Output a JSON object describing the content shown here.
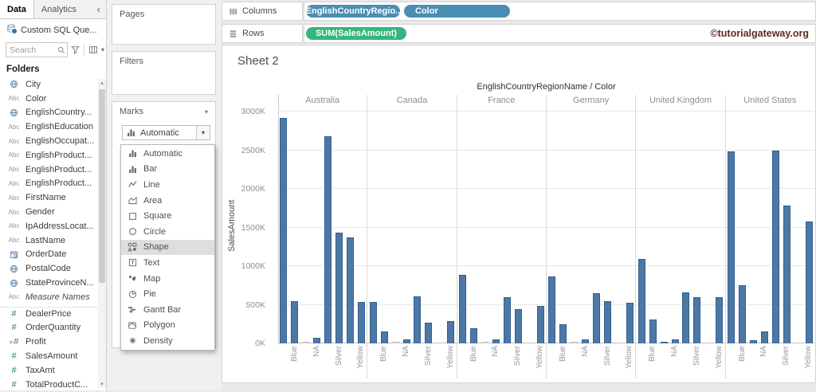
{
  "data_pane": {
    "tabs": {
      "data": "Data",
      "analytics": "Analytics"
    },
    "connection": "Custom SQL Que...",
    "search_placeholder": "Search",
    "folders_label": "Folders",
    "fields": [
      {
        "label": "City",
        "icon": "globe-icon"
      },
      {
        "label": "Color",
        "icon": "abc-icon"
      },
      {
        "label": "EnglishCountry...",
        "icon": "globe-icon"
      },
      {
        "label": "EnglishEducation",
        "icon": "abc-icon"
      },
      {
        "label": "EnglishOccupat...",
        "icon": "abc-icon"
      },
      {
        "label": "EnglishProduct...",
        "icon": "abc-icon"
      },
      {
        "label": "EnglishProduct...",
        "icon": "abc-icon"
      },
      {
        "label": "EnglishProduct...",
        "icon": "abc-icon"
      },
      {
        "label": "FirstName",
        "icon": "abc-icon"
      },
      {
        "label": "Gender",
        "icon": "abc-icon"
      },
      {
        "label": "IpAddressLocat...",
        "icon": "abc-icon"
      },
      {
        "label": "LastName",
        "icon": "abc-icon"
      },
      {
        "label": "OrderDate",
        "icon": "calendar-icon"
      },
      {
        "label": "PostalCode",
        "icon": "globe-icon"
      },
      {
        "label": "StateProvinceN...",
        "icon": "globe-icon"
      },
      {
        "label": "Measure Names",
        "icon": "abc-icon",
        "italic": true
      },
      {
        "label": "DealerPrice",
        "icon": "hash-icon",
        "measure": true,
        "section_start": true
      },
      {
        "label": "OrderQuantity",
        "icon": "hash-icon",
        "measure": true
      },
      {
        "label": "Profit",
        "icon": "hash-equals-icon",
        "measure": true
      },
      {
        "label": "SalesAmount",
        "icon": "hash-icon",
        "measure": true
      },
      {
        "label": "TaxAmt",
        "icon": "hash-icon",
        "measure": true
      },
      {
        "label": "TotalProductC...",
        "icon": "hash-icon",
        "measure": true
      }
    ]
  },
  "shelves": {
    "pages_label": "Pages",
    "filters_label": "Filters",
    "columns_label": "Columns",
    "rows_label": "Rows",
    "columns_pills": [
      "EnglishCountryRegio..",
      "Color"
    ],
    "rows_pills": [
      "SUM(SalesAmount)"
    ]
  },
  "marks": {
    "panel_label": "Marks",
    "selected_type": "Automatic",
    "options": [
      {
        "label": "Automatic",
        "icon": "bar-chart-icon"
      },
      {
        "label": "Bar",
        "icon": "bar-chart-icon"
      },
      {
        "label": "Line",
        "icon": "line-icon"
      },
      {
        "label": "Area",
        "icon": "area-icon"
      },
      {
        "label": "Square",
        "icon": "square-icon"
      },
      {
        "label": "Circle",
        "icon": "circle-icon"
      },
      {
        "label": "Shape",
        "icon": "shape-icon",
        "highlighted": true
      },
      {
        "label": "Text",
        "icon": "text-icon"
      },
      {
        "label": "Map",
        "icon": "map-icon"
      },
      {
        "label": "Pie",
        "icon": "pie-icon"
      },
      {
        "label": "Gantt Bar",
        "icon": "gantt-icon"
      },
      {
        "label": "Polygon",
        "icon": "polygon-icon"
      },
      {
        "label": "Density",
        "icon": "density-icon"
      }
    ]
  },
  "watermark": "©tutorialgateway.org",
  "chart_data": {
    "type": "bar",
    "title": "Sheet 2",
    "column_header": "EnglishCountryRegionName / Color",
    "ylabel": "SalesAmount",
    "unit": "K",
    "ylim": [
      0,
      3000
    ],
    "yticks": [
      "3000K",
      "2500K",
      "2000K",
      "1500K",
      "1000K",
      "500K",
      "0K"
    ],
    "color_labels": [
      "Blue",
      "NA",
      "Silver",
      "Yellow"
    ],
    "series": [
      {
        "country": "Australia",
        "values": [
          2920,
          550,
          10,
          70,
          2680,
          1430,
          1370,
          540
        ],
        "gray": [
          2
        ]
      },
      {
        "country": "Canada",
        "values": [
          535,
          160,
          10,
          55,
          610,
          270,
          null,
          290
        ],
        "gray": [
          2
        ]
      },
      {
        "country": "France",
        "values": [
          885,
          195,
          10,
          50,
          595,
          445,
          null,
          485
        ],
        "gray": [
          2
        ]
      },
      {
        "country": "Germany",
        "values": [
          870,
          245,
          10,
          50,
          650,
          550,
          null,
          525
        ],
        "gray": [
          2
        ]
      },
      {
        "country": "United Kingdom",
        "values": [
          1090,
          310,
          25,
          52,
          660,
          595,
          null,
          600
        ],
        "gray": []
      },
      {
        "country": "United States",
        "values": [
          2490,
          755,
          45,
          155,
          2500,
          1780,
          null,
          1580
        ],
        "gray": []
      }
    ]
  }
}
